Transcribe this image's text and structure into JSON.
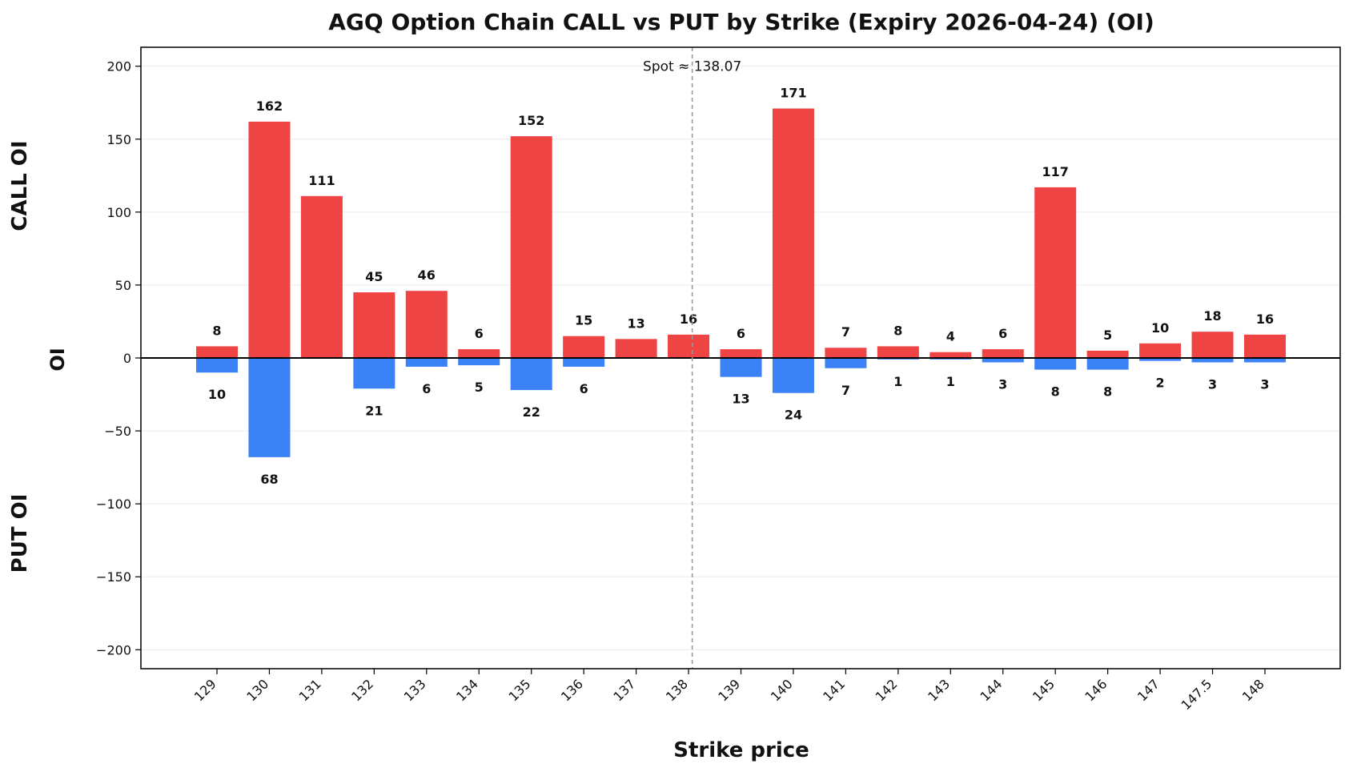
{
  "chart_data": {
    "type": "bar",
    "title": "AGQ Option Chain CALL vs PUT by Strike (Expiry 2026-04-24) (OI)",
    "xlabel": "Strike price",
    "ylabel": "OI",
    "ylabel_top": "CALL OI",
    "ylabel_bottom": "PUT OI",
    "categories": [
      "129",
      "130",
      "131",
      "132",
      "133",
      "134",
      "135",
      "136",
      "137",
      "138",
      "139",
      "140",
      "141",
      "142",
      "143",
      "144",
      "145",
      "146",
      "147",
      "147.5",
      "148"
    ],
    "series": [
      {
        "values": [
          8,
          162,
          111,
          45,
          46,
          6,
          152,
          15,
          13,
          16,
          6,
          171,
          7,
          8,
          4,
          6,
          117,
          5,
          10,
          18,
          16
        ],
        "color": "#ef4444"
      },
      {
        "values": [
          -10,
          -68,
          0,
          -21,
          -6,
          -5,
          -22,
          -6,
          0,
          0,
          -13,
          -24,
          -7,
          -1,
          -1,
          -3,
          -8,
          -8,
          -2,
          -3,
          -3
        ],
        "color": "#3b82f6"
      }
    ],
    "call_labels": [
      "8",
      "162",
      "111",
      "45",
      "46",
      "6",
      "152",
      "15",
      "13",
      "16",
      "6",
      "171",
      "7",
      "8",
      "4",
      "6",
      "117",
      "5",
      "10",
      "18",
      "16"
    ],
    "put_labels": [
      "10",
      "68",
      "",
      "21",
      "6",
      "5",
      "22",
      "6",
      "",
      "",
      "13",
      "24",
      "7",
      "1",
      "1",
      "3",
      "8",
      "8",
      "2",
      "3",
      "3"
    ],
    "ylim": [
      -213,
      213
    ],
    "yticks": [
      -200,
      -150,
      -100,
      -50,
      0,
      50,
      100,
      150,
      200
    ],
    "ytick_labels": [
      "−200",
      "−150",
      "−100",
      "−50",
      "0",
      "50",
      "100",
      "150",
      "200"
    ],
    "spot_value": 138.07,
    "spot_label": "Spot ≈ 138.07",
    "grid": true
  }
}
